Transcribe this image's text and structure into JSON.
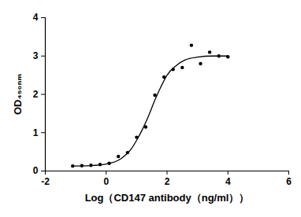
{
  "chart_data": {
    "type": "scatter",
    "xlabel": "Log（CD147 antibody（ng/ml））",
    "ylabel": "OD₄₅₀ₙₘ",
    "xlim": [
      -2,
      6
    ],
    "xticks": [
      -2,
      0,
      2,
      4,
      6
    ],
    "ylim": [
      0,
      4
    ],
    "yticks": [
      0,
      1,
      2,
      3,
      4
    ],
    "grid": false,
    "series": [
      {
        "type": "scatter",
        "color": "#000000",
        "marker": "circle",
        "x": [
          -1.1,
          -0.8,
          -0.5,
          -0.2,
          0.1,
          0.4,
          0.7,
          1.0,
          1.3,
          1.6,
          1.9,
          2.2,
          2.5,
          2.8,
          3.1,
          3.4,
          3.7,
          4.0
        ],
        "values": [
          0.13,
          0.14,
          0.15,
          0.17,
          0.2,
          0.38,
          0.48,
          0.88,
          1.15,
          1.98,
          2.45,
          2.65,
          2.7,
          3.28,
          2.8,
          3.1,
          3.0,
          2.98
        ]
      },
      {
        "type": "line",
        "color": "#000000",
        "line_style": "solid",
        "x": [
          -1.1,
          -0.5,
          0,
          0.5,
          0.8,
          1.0,
          1.2,
          1.4,
          1.6,
          1.8,
          2.0,
          2.3,
          2.6,
          3.0,
          3.5,
          4.0
        ],
        "values": [
          0.13,
          0.14,
          0.18,
          0.33,
          0.55,
          0.8,
          1.1,
          1.45,
          1.85,
          2.2,
          2.5,
          2.75,
          2.9,
          2.97,
          3.0,
          3.0
        ]
      }
    ]
  }
}
